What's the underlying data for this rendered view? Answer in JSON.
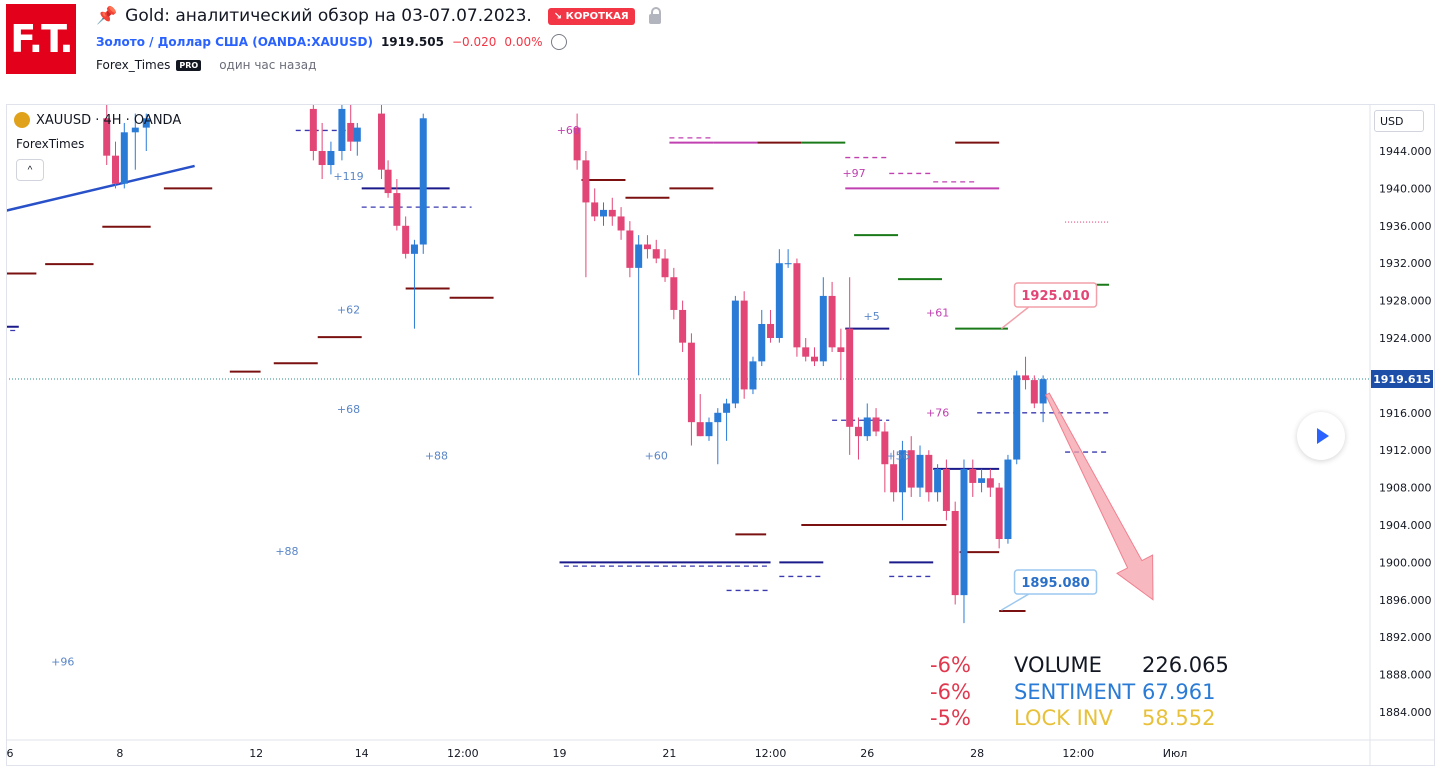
{
  "header": {
    "pin_icon": "pin-icon",
    "title": "Gold: аналитический обзор на 03-07.07.2023.",
    "badge": "↘ КОРОТКАЯ",
    "symbol_name": "Золото / Доллар США",
    "symbol_code": "(OANDA:XAUUSD)",
    "price": "1919.505",
    "change": "−0.020",
    "change_pct": "0.00%",
    "author": "Forex_Times",
    "pro": "PRO",
    "time_ago": "один час назад",
    "logo_text": "F.T."
  },
  "chart": {
    "legend_symbol": "XAUUSD · 4H · OANDA",
    "indicator_name": "ForexTimes",
    "currency": "USD",
    "collapse_glyph": "^",
    "current_price_label": "1919.615",
    "upper_target_label": "1925.010",
    "lower_target_label": "1895.080"
  },
  "stats": [
    {
      "pct": "-6%",
      "name": "VOLUME",
      "value": "226.065",
      "name_color": "#131722",
      "value_color": "#131722"
    },
    {
      "pct": "-6%",
      "name": "SENTIMENT",
      "value": "67.961",
      "name_color": "#2a7bd6",
      "value_color": "#2a7bd6"
    },
    {
      "pct": "-5%",
      "name": "LOCK INV",
      "value": "58.552",
      "name_color": "#e8c13a",
      "value_color": "#e8c13a"
    }
  ],
  "colors": {
    "up": "#2a7bd6",
    "down": "#e24677",
    "accent": "#2962ff",
    "short": "#f23645"
  },
  "chart_data": {
    "type": "candlestick",
    "symbol": "XAUUSD",
    "timeframe": "4H",
    "ylim": [
      1880,
      1948
    ],
    "y_ticks": [
      "1944.000",
      "1940.000",
      "1936.000",
      "1932.000",
      "1928.000",
      "1924.000",
      "1920.000",
      "1916.000",
      "1912.000",
      "1908.000",
      "1904.000",
      "1900.000",
      "1896.000",
      "1892.000",
      "1888.000",
      "1884.000"
    ],
    "x_ticks": [
      "6",
      "8",
      "12",
      "14",
      "12:00",
      "19",
      "21",
      "12:00",
      "26",
      "28",
      "12:00",
      "Июл"
    ],
    "x_tick_pos": [
      0.0,
      2.5,
      5.6,
      8.0,
      10.3,
      12.5,
      15.0,
      17.3,
      19.5,
      22.0,
      24.3,
      26.5
    ],
    "x_range": [
      -0.2,
      29.5
    ],
    "candles": [
      {
        "t": 2.2,
        "o": 1947.5,
        "h": 1949.0,
        "l": 1942.5,
        "c": 1943.5
      },
      {
        "t": 2.4,
        "o": 1943.5,
        "h": 1945.0,
        "l": 1940.0,
        "c": 1940.5
      },
      {
        "t": 2.6,
        "o": 1940.5,
        "h": 1947.0,
        "l": 1940.0,
        "c": 1946.0
      },
      {
        "t": 2.85,
        "o": 1946.0,
        "h": 1948.0,
        "l": 1942.0,
        "c": 1946.5
      },
      {
        "t": 3.1,
        "o": 1946.5,
        "h": 1948.0,
        "l": 1944.0,
        "c": 1947.5
      },
      {
        "t": 6.9,
        "o": 1948.5,
        "h": 1950.0,
        "l": 1943.0,
        "c": 1944.0
      },
      {
        "t": 7.1,
        "o": 1944.0,
        "h": 1947.0,
        "l": 1941.0,
        "c": 1942.5
      },
      {
        "t": 7.3,
        "o": 1942.5,
        "h": 1945.0,
        "l": 1941.5,
        "c": 1944.0
      },
      {
        "t": 7.55,
        "o": 1944.0,
        "h": 1949.0,
        "l": 1943.0,
        "c": 1948.5
      },
      {
        "t": 7.75,
        "o": 1947.0,
        "h": 1949.0,
        "l": 1944.0,
        "c": 1945.0
      },
      {
        "t": 7.9,
        "o": 1945.0,
        "h": 1947.0,
        "l": 1943.5,
        "c": 1946.5
      },
      {
        "t": 8.45,
        "o": 1948.0,
        "h": 1949.0,
        "l": 1941.0,
        "c": 1942.0
      },
      {
        "t": 8.6,
        "o": 1942.0,
        "h": 1943.0,
        "l": 1939.0,
        "c": 1939.5
      },
      {
        "t": 8.8,
        "o": 1939.5,
        "h": 1941.0,
        "l": 1935.5,
        "c": 1936.0
      },
      {
        "t": 9.0,
        "o": 1936.0,
        "h": 1937.0,
        "l": 1932.5,
        "c": 1933.0
      },
      {
        "t": 9.2,
        "o": 1933.0,
        "h": 1934.5,
        "l": 1925.0,
        "c": 1934.0
      },
      {
        "t": 9.4,
        "o": 1934.0,
        "h": 1948.0,
        "l": 1933.0,
        "c": 1947.5
      },
      {
        "t": 12.9,
        "o": 1946.5,
        "h": 1948.0,
        "l": 1942.0,
        "c": 1943.0
      },
      {
        "t": 13.1,
        "o": 1943.0,
        "h": 1944.0,
        "l": 1930.5,
        "c": 1938.5
      },
      {
        "t": 13.3,
        "o": 1938.5,
        "h": 1940.0,
        "l": 1936.5,
        "c": 1937.0
      },
      {
        "t": 13.5,
        "o": 1937.0,
        "h": 1938.5,
        "l": 1936.0,
        "c": 1937.7
      },
      {
        "t": 13.7,
        "o": 1937.7,
        "h": 1939.0,
        "l": 1936.0,
        "c": 1937.0
      },
      {
        "t": 13.9,
        "o": 1937.0,
        "h": 1938.0,
        "l": 1934.5,
        "c": 1935.5
      },
      {
        "t": 14.1,
        "o": 1935.5,
        "h": 1936.5,
        "l": 1930.5,
        "c": 1931.5
      },
      {
        "t": 14.3,
        "o": 1931.5,
        "h": 1935.0,
        "l": 1920.0,
        "c": 1934.0
      },
      {
        "t": 14.5,
        "o": 1934.0,
        "h": 1935.0,
        "l": 1932.5,
        "c": 1933.5
      },
      {
        "t": 14.7,
        "o": 1933.5,
        "h": 1934.5,
        "l": 1932.0,
        "c": 1932.5
      },
      {
        "t": 14.9,
        "o": 1932.5,
        "h": 1933.5,
        "l": 1930.0,
        "c": 1930.5
      },
      {
        "t": 15.1,
        "o": 1930.5,
        "h": 1931.5,
        "l": 1926.0,
        "c": 1927.0
      },
      {
        "t": 15.3,
        "o": 1927.0,
        "h": 1928.0,
        "l": 1922.5,
        "c": 1923.5
      },
      {
        "t": 15.5,
        "o": 1923.5,
        "h": 1924.5,
        "l": 1912.5,
        "c": 1915.0
      },
      {
        "t": 15.7,
        "o": 1915.0,
        "h": 1918.0,
        "l": 1913.5,
        "c": 1913.5
      },
      {
        "t": 15.9,
        "o": 1913.5,
        "h": 1915.5,
        "l": 1913.0,
        "c": 1915.0
      },
      {
        "t": 16.1,
        "o": 1915.0,
        "h": 1916.5,
        "l": 1910.5,
        "c": 1916.0
      },
      {
        "t": 16.3,
        "o": 1916.0,
        "h": 1917.5,
        "l": 1913.0,
        "c": 1917.0
      },
      {
        "t": 16.5,
        "o": 1917.0,
        "h": 1928.5,
        "l": 1916.5,
        "c": 1928.0
      },
      {
        "t": 16.7,
        "o": 1928.0,
        "h": 1929.0,
        "l": 1917.5,
        "c": 1918.5
      },
      {
        "t": 16.9,
        "o": 1918.5,
        "h": 1922.0,
        "l": 1918.0,
        "c": 1921.5
      },
      {
        "t": 17.1,
        "o": 1921.5,
        "h": 1927.0,
        "l": 1921.0,
        "c": 1925.5
      },
      {
        "t": 17.3,
        "o": 1925.5,
        "h": 1927.0,
        "l": 1923.5,
        "c": 1924.0
      },
      {
        "t": 17.5,
        "o": 1924.0,
        "h": 1933.5,
        "l": 1923.5,
        "c": 1932.0
      },
      {
        "t": 17.7,
        "o": 1932.0,
        "h": 1933.5,
        "l": 1931.5,
        "c": 1932.0
      },
      {
        "t": 17.9,
        "o": 1932.0,
        "h": 1932.5,
        "l": 1922.0,
        "c": 1923.0
      },
      {
        "t": 18.1,
        "o": 1923.0,
        "h": 1924.0,
        "l": 1921.5,
        "c": 1922.0
      },
      {
        "t": 18.3,
        "o": 1922.0,
        "h": 1923.0,
        "l": 1921.0,
        "c": 1921.5
      },
      {
        "t": 18.5,
        "o": 1921.5,
        "h": 1930.5,
        "l": 1921.0,
        "c": 1928.5
      },
      {
        "t": 18.7,
        "o": 1928.5,
        "h": 1930.0,
        "l": 1922.5,
        "c": 1923.0
      },
      {
        "t": 18.9,
        "o": 1923.0,
        "h": 1925.0,
        "l": 1919.5,
        "c": 1922.5
      },
      {
        "t": 19.1,
        "o": 1925.0,
        "h": 1930.5,
        "l": 1911.5,
        "c": 1914.5
      },
      {
        "t": 19.3,
        "o": 1914.5,
        "h": 1915.5,
        "l": 1911.0,
        "c": 1913.5
      },
      {
        "t": 19.5,
        "o": 1913.5,
        "h": 1917.0,
        "l": 1913.0,
        "c": 1915.5
      },
      {
        "t": 19.7,
        "o": 1915.5,
        "h": 1916.5,
        "l": 1913.5,
        "c": 1914.0
      },
      {
        "t": 19.9,
        "o": 1914.0,
        "h": 1915.0,
        "l": 1907.5,
        "c": 1910.5
      },
      {
        "t": 20.1,
        "o": 1910.5,
        "h": 1912.0,
        "l": 1906.5,
        "c": 1907.5
      },
      {
        "t": 20.3,
        "o": 1907.5,
        "h": 1913.0,
        "l": 1904.5,
        "c": 1912.0
      },
      {
        "t": 20.5,
        "o": 1912.0,
        "h": 1913.5,
        "l": 1907.0,
        "c": 1908.0
      },
      {
        "t": 20.7,
        "o": 1908.0,
        "h": 1912.5,
        "l": 1907.0,
        "c": 1911.5
      },
      {
        "t": 20.9,
        "o": 1911.5,
        "h": 1912.0,
        "l": 1906.5,
        "c": 1907.5
      },
      {
        "t": 21.1,
        "o": 1907.5,
        "h": 1910.5,
        "l": 1906.5,
        "c": 1910.0
      },
      {
        "t": 21.3,
        "o": 1910.0,
        "h": 1911.0,
        "l": 1904.5,
        "c": 1905.5
      },
      {
        "t": 21.5,
        "o": 1905.5,
        "h": 1906.5,
        "l": 1895.5,
        "c": 1896.5
      },
      {
        "t": 21.7,
        "o": 1896.5,
        "h": 1911.0,
        "l": 1893.5,
        "c": 1910.0
      },
      {
        "t": 21.9,
        "o": 1910.0,
        "h": 1911.0,
        "l": 1907.0,
        "c": 1908.5
      },
      {
        "t": 22.1,
        "o": 1908.5,
        "h": 1910.0,
        "l": 1907.5,
        "c": 1909.0
      },
      {
        "t": 22.3,
        "o": 1909.0,
        "h": 1910.0,
        "l": 1907.0,
        "c": 1908.0
      },
      {
        "t": 22.5,
        "o": 1908.0,
        "h": 1908.5,
        "l": 1901.5,
        "c": 1902.5
      },
      {
        "t": 22.7,
        "o": 1902.5,
        "h": 1911.5,
        "l": 1902.0,
        "c": 1911.0
      },
      {
        "t": 22.9,
        "o": 1911.0,
        "h": 1920.5,
        "l": 1910.5,
        "c": 1920.0
      },
      {
        "t": 23.1,
        "o": 1920.0,
        "h": 1922.0,
        "l": 1918.5,
        "c": 1919.5
      },
      {
        "t": 23.3,
        "o": 1919.5,
        "h": 1920.0,
        "l": 1916.5,
        "c": 1917.0
      },
      {
        "t": 23.5,
        "o": 1917.0,
        "h": 1920.0,
        "l": 1915.0,
        "c": 1919.6
      }
    ],
    "levels": [
      {
        "x1": -0.2,
        "x2": 0.6,
        "y": 1930.9,
        "color": "#7a1010"
      },
      {
        "x1": 0.8,
        "x2": 1.9,
        "y": 1931.9,
        "color": "#7a1010"
      },
      {
        "x1": 2.1,
        "x2": 3.2,
        "y": 1935.9,
        "color": "#7a1010"
      },
      {
        "x1": 3.5,
        "x2": 4.6,
        "y": 1940.0,
        "color": "#7a1010"
      },
      {
        "x1": 5.0,
        "x2": 5.7,
        "y": 1920.4,
        "color": "#7a1010"
      },
      {
        "x1": 6.0,
        "x2": 7.0,
        "y": 1921.3,
        "color": "#7a1010"
      },
      {
        "x1": 7.0,
        "x2": 8.0,
        "y": 1924.1,
        "color": "#7a1010"
      },
      {
        "x1": 9.0,
        "x2": 10.0,
        "y": 1929.3,
        "color": "#7a1010"
      },
      {
        "x1": 10.0,
        "x2": 11.0,
        "y": 1928.3,
        "color": "#7a1010"
      },
      {
        "x1": 13.0,
        "x2": 14.0,
        "y": 1940.9,
        "color": "#7a1010"
      },
      {
        "x1": 14.0,
        "x2": 15.0,
        "y": 1939.0,
        "color": "#7a1010"
      },
      {
        "x1": 15.0,
        "x2": 16.0,
        "y": 1940.0,
        "color": "#7a1010"
      },
      {
        "x1": 17.0,
        "x2": 18.0,
        "y": 1944.9,
        "color": "#7a1010"
      },
      {
        "x1": 21.5,
        "x2": 22.5,
        "y": 1944.9,
        "color": "#7a1010"
      },
      {
        "x1": 16.5,
        "x2": 17.2,
        "y": 1903.0,
        "color": "#7a1010"
      },
      {
        "x1": 18.0,
        "x2": 21.3,
        "y": 1904.0,
        "color": "#7a1010"
      },
      {
        "x1": 21.6,
        "x2": 22.5,
        "y": 1901.1,
        "color": "#7a1010"
      },
      {
        "x1": 22.5,
        "x2": 23.1,
        "y": 1894.8,
        "color": "#7a1010"
      },
      {
        "x1": 18.0,
        "x2": 19.0,
        "y": 1944.9,
        "color": "#1a7a1a"
      },
      {
        "x1": 19.2,
        "x2": 20.2,
        "y": 1935.0,
        "color": "#1a7a1a"
      },
      {
        "x1": 20.2,
        "x2": 21.2,
        "y": 1930.3,
        "color": "#1a7a1a"
      },
      {
        "x1": 21.5,
        "x2": 22.7,
        "y": 1925.0,
        "color": "#1a7a1a"
      },
      {
        "x1": 24.0,
        "x2": 25.0,
        "y": 1929.7,
        "color": "#1a7a1a"
      },
      {
        "x1": 15.0,
        "x2": 16.0,
        "y": 1944.9,
        "color": "#c040b0"
      },
      {
        "x1": 16.0,
        "x2": 17.0,
        "y": 1944.9,
        "color": "#c040b0"
      },
      {
        "x1": 19.0,
        "x2": 22.5,
        "y": 1940.0,
        "color": "#c040b0"
      },
      {
        "x1": 8.0,
        "x2": 10.0,
        "y": 1940.0,
        "color": "#1a1a8a"
      },
      {
        "x1": 19.0,
        "x2": 20.0,
        "y": 1925.0,
        "color": "#1a1a8a"
      },
      {
        "x1": 12.5,
        "x2": 17.3,
        "y": 1900.0,
        "color": "#1a1a8a"
      },
      {
        "x1": 17.5,
        "x2": 18.5,
        "y": 1900.0,
        "color": "#1a1a8a"
      },
      {
        "x1": 20.0,
        "x2": 21.0,
        "y": 1900.0,
        "color": "#1a1a8a"
      },
      {
        "x1": 21.0,
        "x2": 22.5,
        "y": 1910.0,
        "color": "#1a1a8a"
      },
      {
        "x1": -0.2,
        "x2": 0.2,
        "y": 1925.2,
        "color": "#1a1a8a"
      }
    ],
    "dashed_levels": [
      {
        "x1": 6.5,
        "x2": 7.7,
        "y": 1946.2,
        "color": "#3a3ab0"
      },
      {
        "x1": 8.0,
        "x2": 10.5,
        "y": 1938.0,
        "color": "#3a3ab0"
      },
      {
        "x1": 12.6,
        "x2": 17.3,
        "y": 1899.6,
        "color": "#3a3ab0"
      },
      {
        "x1": 16.3,
        "x2": 17.3,
        "y": 1897.0,
        "color": "#3a3ab0"
      },
      {
        "x1": 17.5,
        "x2": 18.5,
        "y": 1898.5,
        "color": "#3a3ab0"
      },
      {
        "x1": 20.0,
        "x2": 21.0,
        "y": 1898.5,
        "color": "#3a3ab0"
      },
      {
        "x1": 18.7,
        "x2": 20.0,
        "y": 1915.2,
        "color": "#3a3ab0"
      },
      {
        "x1": 22.0,
        "x2": 25.0,
        "y": 1916.0,
        "color": "#3a3ab0"
      },
      {
        "x1": 24.0,
        "x2": 25.0,
        "y": 1911.8,
        "color": "#3a3ab0"
      },
      {
        "x1": -0.2,
        "x2": 0.2,
        "y": 1924.8,
        "color": "#3a3ab0"
      },
      {
        "x1": 15.0,
        "x2": 16.0,
        "y": 1945.4,
        "color": "#c040b0"
      },
      {
        "x1": 19.0,
        "x2": 20.0,
        "y": 1943.3,
        "color": "#c040b0"
      },
      {
        "x1": 20.0,
        "x2": 21.0,
        "y": 1941.6,
        "color": "#c040b0"
      },
      {
        "x1": 21.0,
        "x2": 22.0,
        "y": 1940.7,
        "color": "#c040b0"
      }
    ],
    "dotted_levels": [
      {
        "x1": 24.0,
        "x2": 25.0,
        "y": 1936.4,
        "color": "#e24677"
      }
    ],
    "trendline": {
      "x1": -0.2,
      "y1": 1937.5,
      "x2": 4.2,
      "y2": 1942.4,
      "color": "#2850c8"
    },
    "value_labels": [
      {
        "t": 1.2,
        "y": 1889.0,
        "text": "+96",
        "color": "#5a86c8"
      },
      {
        "t": 6.3,
        "y": 1900.8,
        "text": "+88",
        "color": "#5a86c8"
      },
      {
        "t": 7.7,
        "y": 1916.0,
        "text": "+68",
        "color": "#5a86c8"
      },
      {
        "t": 7.7,
        "y": 1926.6,
        "text": "+62",
        "color": "#5a86c8"
      },
      {
        "t": 7.7,
        "y": 1940.9,
        "text": "+119",
        "color": "#5a86c8"
      },
      {
        "t": 9.7,
        "y": 1911.0,
        "text": "+88",
        "color": "#5a86c8"
      },
      {
        "t": 14.7,
        "y": 1911.0,
        "text": "+60",
        "color": "#5a86c8"
      },
      {
        "t": 12.7,
        "y": 1945.8,
        "text": "+60",
        "color": "#c040b0"
      },
      {
        "t": 19.2,
        "y": 1941.2,
        "text": "+97",
        "color": "#c040b0"
      },
      {
        "t": 19.6,
        "y": 1925.9,
        "text": "+5",
        "color": "#5a86c8"
      },
      {
        "t": 20.2,
        "y": 1911.0,
        "text": "+56",
        "color": "#5a86c8"
      },
      {
        "t": 21.1,
        "y": 1926.3,
        "text": "+61",
        "color": "#c040b0"
      },
      {
        "t": 21.1,
        "y": 1915.6,
        "text": "+76",
        "color": "#c040b0"
      }
    ],
    "current_price": 1919.615,
    "forecast_arrow": {
      "from_t": 23.6,
      "from_y": 1918.0,
      "to_t": 26.0,
      "to_y": 1896.0
    }
  }
}
